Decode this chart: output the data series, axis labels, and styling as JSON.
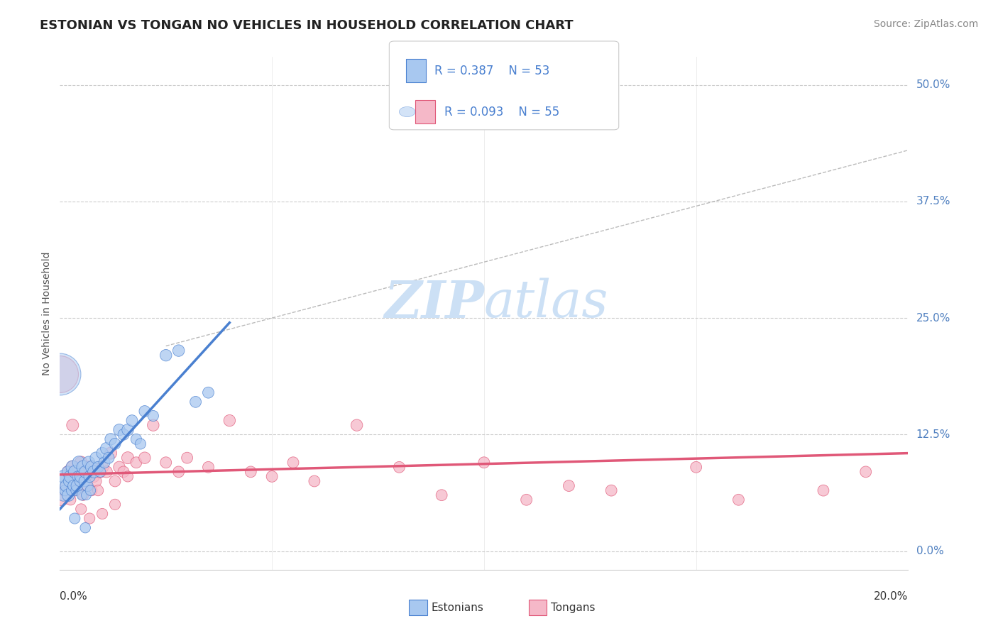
{
  "title": "ESTONIAN VS TONGAN NO VEHICLES IN HOUSEHOLD CORRELATION CHART",
  "source": "Source: ZipAtlas.com",
  "ylabel": "No Vehicles in Household",
  "ytick_vals": [
    0.0,
    12.5,
    25.0,
    37.5,
    50.0
  ],
  "xlim": [
    0.0,
    20.0
  ],
  "ylim": [
    -2.0,
    53.0
  ],
  "legend_r1": "R = 0.387",
  "legend_n1": "N = 53",
  "legend_r2": "R = 0.093",
  "legend_n2": "N = 55",
  "legend_label1": "Estonians",
  "legend_label2": "Tongans",
  "estonian_color": "#a8c8f0",
  "tongan_color": "#f5b8c8",
  "trend_estonian_color": "#4a80d0",
  "trend_tongan_color": "#e05878",
  "axis_color": "#5080c0",
  "background_color": "#ffffff",
  "watermark_color": "#cce0f5",
  "est_trend_x0": 0.0,
  "est_trend_y0": 4.5,
  "est_trend_x1": 4.0,
  "est_trend_y1": 24.5,
  "ton_trend_x0": 0.0,
  "ton_trend_y0": 8.2,
  "ton_trend_x1": 20.0,
  "ton_trend_y1": 10.5,
  "gray_diag_x0": 2.5,
  "gray_diag_y0": 22.0,
  "gray_diag_x1": 20.0,
  "gray_diag_y1": 43.0,
  "estonian_x": [
    0.05,
    0.08,
    0.1,
    0.12,
    0.15,
    0.18,
    0.2,
    0.22,
    0.25,
    0.28,
    0.3,
    0.32,
    0.35,
    0.38,
    0.4,
    0.42,
    0.45,
    0.48,
    0.5,
    0.52,
    0.55,
    0.58,
    0.6,
    0.62,
    0.65,
    0.68,
    0.7,
    0.72,
    0.75,
    0.8,
    0.85,
    0.9,
    0.95,
    1.0,
    1.05,
    1.1,
    1.15,
    1.2,
    1.3,
    1.4,
    1.5,
    1.6,
    1.7,
    1.8,
    1.9,
    2.0,
    2.2,
    2.5,
    2.8,
    3.2,
    3.5,
    0.35,
    0.6
  ],
  "estonian_y": [
    7.5,
    6.0,
    8.0,
    6.5,
    7.0,
    8.5,
    6.0,
    7.5,
    8.0,
    6.5,
    9.0,
    7.0,
    8.5,
    6.5,
    7.0,
    8.0,
    9.5,
    7.5,
    8.0,
    6.0,
    9.0,
    7.5,
    8.5,
    6.0,
    7.0,
    9.5,
    8.0,
    6.5,
    9.0,
    8.5,
    10.0,
    9.0,
    8.5,
    10.5,
    9.5,
    11.0,
    10.0,
    12.0,
    11.5,
    13.0,
    12.5,
    13.0,
    14.0,
    12.0,
    11.5,
    15.0,
    14.5,
    21.0,
    21.5,
    16.0,
    17.0,
    3.5,
    2.5
  ],
  "estonian_sizes": [
    200,
    150,
    180,
    120,
    150,
    130,
    160,
    140,
    170,
    120,
    180,
    130,
    160,
    110,
    140,
    120,
    170,
    130,
    160,
    110,
    180,
    130,
    150,
    100,
    130,
    160,
    140,
    110,
    160,
    150,
    140,
    130,
    120,
    140,
    130,
    150,
    130,
    140,
    130,
    140,
    130,
    140,
    130,
    120,
    120,
    130,
    120,
    140,
    140,
    130,
    130,
    120,
    110
  ],
  "tongan_x": [
    0.05,
    0.1,
    0.15,
    0.2,
    0.25,
    0.3,
    0.35,
    0.4,
    0.45,
    0.5,
    0.55,
    0.6,
    0.65,
    0.7,
    0.75,
    0.8,
    0.85,
    0.9,
    0.95,
    1.0,
    1.1,
    1.2,
    1.3,
    1.4,
    1.5,
    1.6,
    1.8,
    2.0,
    2.2,
    2.5,
    2.8,
    3.0,
    3.5,
    4.0,
    4.5,
    5.0,
    5.5,
    6.0,
    7.0,
    8.0,
    9.0,
    10.0,
    11.0,
    12.0,
    13.0,
    15.0,
    16.0,
    18.0,
    19.0,
    0.3,
    0.5,
    0.7,
    1.0,
    1.3,
    1.6
  ],
  "tongan_y": [
    5.5,
    6.5,
    7.0,
    8.5,
    5.5,
    9.0,
    6.5,
    8.0,
    7.5,
    9.5,
    6.0,
    8.5,
    7.0,
    9.0,
    6.5,
    8.0,
    7.5,
    6.5,
    8.5,
    9.0,
    8.5,
    10.5,
    7.5,
    9.0,
    8.5,
    10.0,
    9.5,
    10.0,
    13.5,
    9.5,
    8.5,
    10.0,
    9.0,
    14.0,
    8.5,
    8.0,
    9.5,
    7.5,
    13.5,
    9.0,
    6.0,
    9.5,
    5.5,
    7.0,
    6.5,
    9.0,
    5.5,
    6.5,
    8.5,
    13.5,
    4.5,
    3.5,
    4.0,
    5.0,
    8.0
  ],
  "tongan_sizes": [
    150,
    130,
    140,
    160,
    120,
    170,
    130,
    150,
    140,
    160,
    120,
    150,
    130,
    160,
    120,
    140,
    130,
    120,
    150,
    160,
    140,
    150,
    130,
    140,
    130,
    150,
    130,
    140,
    140,
    130,
    130,
    130,
    130,
    140,
    130,
    130,
    130,
    130,
    140,
    130,
    130,
    130,
    130,
    130,
    130,
    130,
    130,
    130,
    130,
    150,
    120,
    120,
    120,
    120,
    120
  ],
  "large_est_x": 0.0,
  "large_est_y": 19.0,
  "large_est_size": 1800,
  "large_ton_x": 0.0,
  "large_ton_y": 19.0,
  "large_ton_size": 1400
}
